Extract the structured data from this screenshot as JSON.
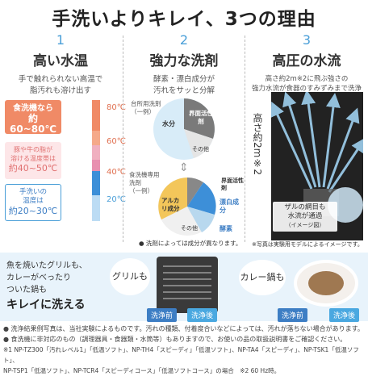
{
  "title": "手洗いよりキレイ、3つの理由",
  "col1": {
    "num": "1",
    "heading": "高い水温",
    "desc1": "手で触れられない高温で",
    "desc2": "脂汚れも溶け出す",
    "dish_box": {
      "line1": "食洗機なら",
      "line2": "約60~80℃"
    },
    "meat_box": {
      "line1": "豚や牛の脂が",
      "line2": "溶ける温度帯は",
      "line3": "約40~50℃"
    },
    "hand_box": {
      "line1": "手洗いの",
      "line2": "温度は",
      "line3": "約20~30℃"
    },
    "temps": [
      "80℃",
      "60℃",
      "40℃",
      "20℃"
    ]
  },
  "col2": {
    "num": "2",
    "heading": "強力な洗剤",
    "desc1": "酵素・漂白成分が",
    "desc2": "汚れをサッと分解",
    "pie1_title1": "台所用洗剤",
    "pie1_title2": "（一例）",
    "pie1_labels": [
      "水分",
      "界面活性剤",
      "その他"
    ],
    "pie2_title1": "食洗機専用",
    "pie2_title2": "洗剤",
    "pie2_title3": "（一例）",
    "pie2_labels": [
      "アルカリ成分",
      "界面活性剤",
      "漂白成分",
      "酵素",
      "その他"
    ],
    "note": "● 洗剤によっては成分が異なります。"
  },
  "col3": {
    "num": "3",
    "heading": "高圧の水流",
    "desc1": "高さ約2m※2に飛ぶ強さの",
    "desc2": "強力水流が食器のすみずみまで洗浄",
    "vertical": "高さ約2m※2",
    "callout1": "ザルの網目も",
    "callout2": "水流が通過",
    "callout3": "（イメージ図）",
    "note": "※写真は実験用モデルによるイメージです。"
  },
  "bottom": {
    "left_text1": "魚を焼いたグリルも、",
    "left_text2": "カレーがべったり",
    "left_text3": "ついた鍋も",
    "left_text4": "キレイに洗える",
    "bubble1": "グリルも",
    "bubble2": "カレー鍋も",
    "before": "洗浄前",
    "after": "洗浄後"
  },
  "footnotes": [
    "● 洗浄結果例写真は、当社実験によるものです。汚れの種類、付着度合いなどによっては、汚れが落ちない場合があります。",
    "● 食洗機に非対応のもの（調理器具・食器類・水筒等）もありますので、お使いの品の取扱説明書をご確認ください。",
    "※1 NP-TZ300「汚れレベル1」「低温ソフト」、NP-TH4「スピーディ」「低温ソフト」、NP-TA4「スピーディ」、NP-TSK1「低温ソフト」、",
    "NP-TSP1「低温ソフト」、NP-TCR4「スピーディコース」「低温ソフトコース」の場合　※2 60 Hz時。"
  ],
  "colors": {
    "accent": "#4a9fd8",
    "hot": "#f08a66",
    "band": "#e8f3fb"
  }
}
